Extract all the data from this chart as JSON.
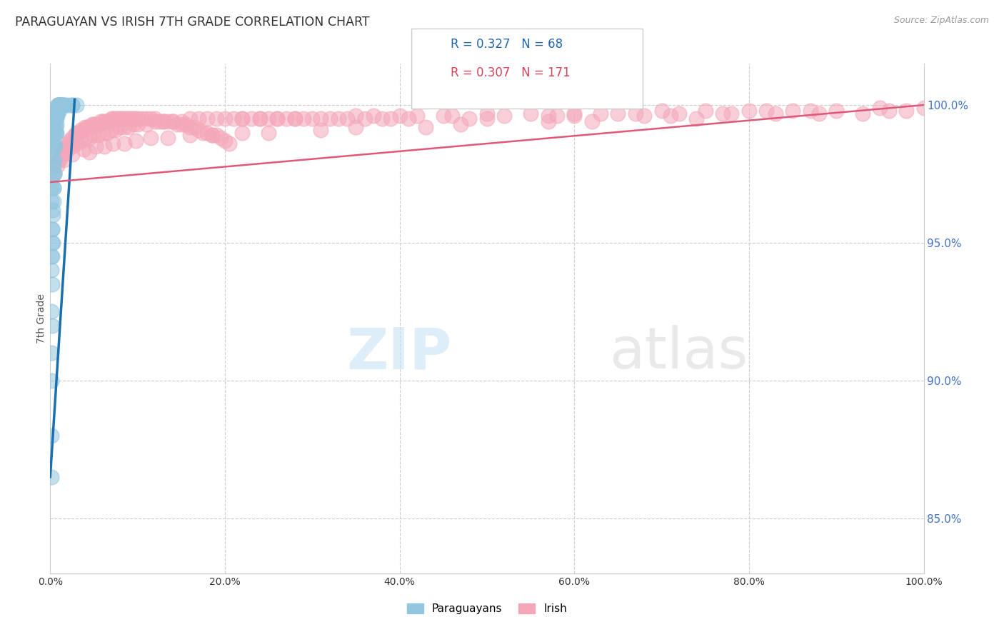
{
  "title": "PARAGUAYAN VS IRISH 7TH GRADE CORRELATION CHART",
  "source": "Source: ZipAtlas.com",
  "ylabel": "7th Grade",
  "right_yticks": [
    85.0,
    90.0,
    95.0,
    100.0
  ],
  "legend_paraguayan": {
    "R": 0.327,
    "N": 68,
    "color": "#92c5de"
  },
  "legend_irish": {
    "R": 0.307,
    "N": 171,
    "color": "#f4a7b9"
  },
  "paraguayan_color": "#92c5de",
  "irish_color": "#f4a7b9",
  "trend_paraguayan_color": "#1a6faf",
  "trend_irish_color": "#e05878",
  "background_color": "#ffffff",
  "grid_color": "#cccccc",
  "paraguayan_x": [
    0.1,
    0.15,
    0.2,
    0.2,
    0.25,
    0.3,
    0.35,
    0.4,
    0.45,
    0.5,
    0.55,
    0.6,
    0.65,
    0.7,
    0.75,
    0.8,
    0.85,
    0.9,
    0.95,
    1.0,
    0.1,
    0.15,
    0.2,
    0.25,
    0.3,
    0.35,
    0.4,
    0.45,
    0.5,
    0.55,
    0.6,
    0.65,
    0.7,
    0.8,
    0.9,
    1.0,
    1.1,
    1.2,
    1.4,
    1.6,
    0.1,
    0.1,
    0.15,
    0.15,
    0.2,
    0.2,
    0.25,
    0.3,
    0.35,
    0.4,
    0.5,
    0.6,
    0.7,
    0.8,
    1.0,
    1.2,
    1.5,
    2.0,
    2.5,
    3.0,
    0.1,
    0.2,
    0.3,
    0.5,
    0.7,
    1.0,
    1.5,
    2.5
  ],
  "paraguayan_y": [
    96.5,
    97.0,
    97.5,
    98.0,
    98.2,
    98.5,
    98.7,
    99.0,
    99.2,
    99.4,
    99.5,
    99.6,
    99.7,
    99.8,
    99.8,
    99.9,
    100.0,
    100.0,
    100.0,
    100.0,
    94.0,
    94.5,
    95.0,
    95.5,
    96.0,
    96.5,
    97.0,
    97.5,
    98.0,
    98.5,
    99.0,
    99.2,
    99.5,
    99.7,
    100.0,
    100.0,
    100.0,
    100.0,
    100.0,
    100.0,
    88.0,
    90.0,
    91.0,
    92.5,
    93.5,
    94.5,
    95.5,
    96.2,
    97.0,
    97.8,
    98.5,
    99.0,
    99.3,
    99.6,
    99.9,
    100.0,
    100.0,
    100.0,
    100.0,
    100.0,
    86.5,
    92.0,
    95.0,
    97.5,
    99.0,
    99.8,
    100.0,
    100.0
  ],
  "irish_x": [
    0.5,
    0.8,
    1.0,
    1.2,
    1.5,
    1.8,
    2.0,
    2.2,
    2.5,
    2.8,
    3.0,
    3.2,
    3.5,
    3.8,
    4.0,
    4.2,
    4.5,
    4.8,
    5.0,
    5.2,
    5.5,
    5.8,
    6.0,
    6.2,
    6.5,
    6.8,
    7.0,
    7.2,
    7.5,
    7.8,
    8.0,
    8.2,
    8.5,
    8.8,
    9.0,
    9.2,
    9.5,
    9.8,
    10.0,
    10.5,
    11.0,
    11.5,
    12.0,
    12.5,
    13.0,
    13.5,
    14.0,
    14.5,
    15.0,
    15.5,
    16.0,
    16.5,
    17.0,
    17.5,
    18.0,
    18.5,
    19.0,
    19.5,
    20.0,
    20.5,
    1.0,
    1.5,
    2.0,
    2.5,
    3.0,
    3.5,
    4.0,
    4.5,
    5.0,
    5.5,
    6.0,
    6.5,
    7.0,
    7.5,
    8.0,
    8.5,
    9.0,
    9.5,
    10.0,
    11.0,
    12.0,
    13.0,
    14.0,
    15.0,
    16.0,
    17.0,
    18.0,
    19.0,
    20.0,
    21.0,
    22.0,
    24.0,
    26.0,
    30.0,
    35.0,
    40.0,
    50.0,
    60.0,
    70.0,
    80.0,
    22.0,
    25.0,
    28.0,
    32.0,
    37.0,
    45.0,
    55.0,
    65.0,
    75.0,
    85.0,
    23.0,
    27.0,
    31.0,
    36.0,
    42.0,
    52.0,
    63.0,
    72.0,
    82.0,
    90.0,
    24.0,
    29.0,
    34.0,
    39.0,
    46.0,
    57.0,
    67.0,
    77.0,
    87.0,
    95.0,
    26.0,
    33.0,
    41.0,
    50.0,
    60.0,
    71.0,
    83.0,
    93.0,
    98.0,
    100.0,
    28.0,
    38.0,
    48.0,
    58.0,
    68.0,
    78.0,
    88.0,
    96.0,
    1.5,
    2.5,
    3.8,
    5.2,
    7.2,
    9.8,
    13.5,
    18.5,
    25.0,
    35.0,
    47.0,
    62.0,
    4.5,
    6.2,
    8.5,
    11.5,
    16.0,
    22.0,
    31.0,
    43.0,
    57.0,
    74.0
  ],
  "irish_y": [
    97.5,
    97.8,
    98.0,
    98.2,
    98.4,
    98.5,
    98.6,
    98.7,
    98.8,
    98.9,
    99.0,
    99.0,
    99.1,
    99.1,
    99.2,
    99.2,
    99.2,
    99.3,
    99.3,
    99.3,
    99.3,
    99.4,
    99.4,
    99.4,
    99.4,
    99.4,
    99.5,
    99.5,
    99.5,
    99.5,
    99.5,
    99.5,
    99.5,
    99.5,
    99.5,
    99.5,
    99.5,
    99.5,
    99.5,
    99.5,
    99.5,
    99.5,
    99.5,
    99.4,
    99.4,
    99.4,
    99.4,
    99.3,
    99.3,
    99.3,
    99.2,
    99.2,
    99.1,
    99.0,
    99.0,
    98.9,
    98.9,
    98.8,
    98.7,
    98.6,
    98.0,
    98.2,
    98.4,
    98.5,
    98.6,
    98.7,
    98.8,
    98.8,
    98.9,
    98.9,
    99.0,
    99.0,
    99.1,
    99.1,
    99.2,
    99.2,
    99.2,
    99.3,
    99.3,
    99.3,
    99.4,
    99.4,
    99.4,
    99.4,
    99.5,
    99.5,
    99.5,
    99.5,
    99.5,
    99.5,
    99.5,
    99.5,
    99.5,
    99.5,
    99.6,
    99.6,
    99.7,
    99.7,
    99.8,
    99.8,
    99.5,
    99.5,
    99.5,
    99.5,
    99.6,
    99.6,
    99.7,
    99.7,
    99.8,
    99.8,
    99.5,
    99.5,
    99.5,
    99.5,
    99.6,
    99.6,
    99.7,
    99.7,
    99.8,
    99.8,
    99.5,
    99.5,
    99.5,
    99.5,
    99.6,
    99.6,
    99.7,
    99.7,
    99.8,
    99.9,
    99.5,
    99.5,
    99.5,
    99.5,
    99.6,
    99.6,
    99.7,
    99.7,
    99.8,
    99.9,
    99.5,
    99.5,
    99.5,
    99.6,
    99.6,
    99.7,
    99.7,
    99.8,
    98.0,
    98.2,
    98.4,
    98.5,
    98.6,
    98.7,
    98.8,
    98.9,
    99.0,
    99.2,
    99.3,
    99.4,
    98.3,
    98.5,
    98.6,
    98.8,
    98.9,
    99.0,
    99.1,
    99.2,
    99.4,
    99.5
  ],
  "trend_p_x0": 0.0,
  "trend_p_y0": 86.5,
  "trend_p_x1": 2.8,
  "trend_p_y1": 100.2,
  "trend_i_x0": 0.0,
  "trend_i_y0": 97.2,
  "trend_i_x1": 100.0,
  "trend_i_y1": 100.0,
  "xlim": [
    0,
    100
  ],
  "ylim": [
    83.0,
    101.5
  ],
  "xticks": [
    0,
    20,
    40,
    60,
    80,
    100
  ],
  "watermark_zip_x": 46,
  "watermark_zip_y": 91.0,
  "watermark_atlas_x": 64,
  "watermark_atlas_y": 91.0
}
